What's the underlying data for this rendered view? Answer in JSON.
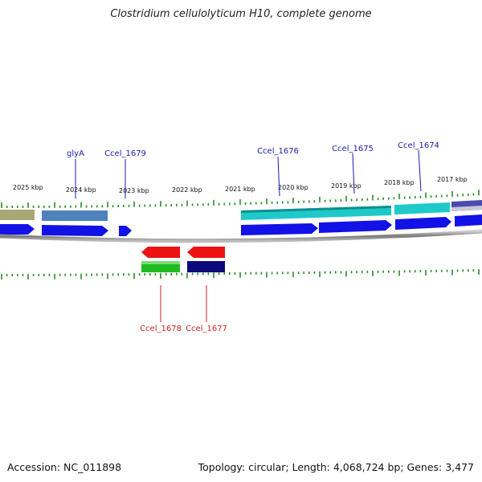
{
  "title": "Clostridium cellulolyticum H10, complete genome",
  "accession": "Accession: NC_011898",
  "summary": "Topology: circular; Length: 4,068,724 bp; Genes: 3,477",
  "colors": {
    "forward_label": "#1a1aa8",
    "reverse_label": "#cc2222",
    "ticks": "#2a8a2a",
    "backbone": "#888888"
  },
  "kbp_ticks": [
    "2025 kbp",
    "2024 kbp",
    "2023 kbp",
    "2022 kbp",
    "2021 kbp",
    "2020 kbp",
    "2019 kbp",
    "2018 kbp",
    "2017 kbp"
  ],
  "genes_forward": [
    {
      "label": "glyA",
      "cog_color": "#4f82bd"
    },
    {
      "label": "Ccel_1679",
      "cog_color": "#1212e6"
    },
    {
      "label": "Ccel_1676",
      "cog_color": "#1fc9c9"
    },
    {
      "label": "Ccel_1675",
      "cog_color": "#1fc9c9"
    },
    {
      "label": "Ccel_1674",
      "cog_color": "#1fc9c9"
    }
  ],
  "genes_reverse": [
    {
      "label": "Ccel_1678",
      "cog_color": "#22bb22"
    },
    {
      "label": "Ccel_1677",
      "cog_color": "#0a0a7a"
    }
  ]
}
